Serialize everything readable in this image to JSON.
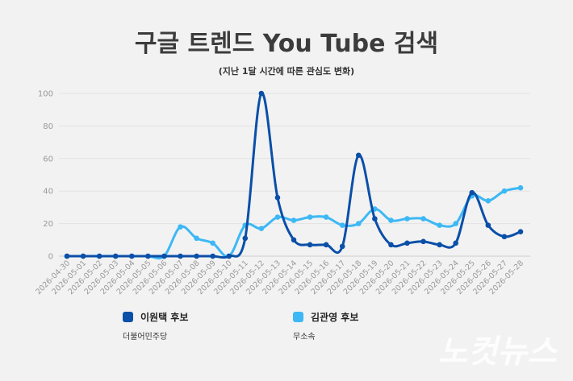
{
  "chart_data": {
    "type": "line",
    "title": "구글 트렌드 You Tube 검색",
    "subtitle": "(지난 1달 시간에 따른 관심도 변화)",
    "xlabel": "",
    "ylabel": "",
    "ylim": [
      0,
      100
    ],
    "yticks": [
      0,
      20,
      40,
      60,
      80,
      100
    ],
    "grid": true,
    "legend_position": "bottom",
    "x": [
      "2026-04-30",
      "2026-05-01",
      "2026-05-02",
      "2026-05-03",
      "2026-05-04",
      "2026-05-05",
      "2026-05-06",
      "2026-05-07",
      "2026-05-08",
      "2026-05-09",
      "2026-05-10",
      "2026-05-11",
      "2026-05-12",
      "2026-05-13",
      "2026-05-14",
      "2026-05-15",
      "2026-05-16",
      "2026-05-17",
      "2026-05-18",
      "2026-05-19",
      "2026-05-20",
      "2026-05-21",
      "2026-05-22",
      "2026-05-23",
      "2026-05-24",
      "2026-05-25",
      "2026-05-26",
      "2026-05-27",
      "2026-05-28"
    ],
    "series": [
      {
        "name": "이원택 후보",
        "party": "더불어민주당",
        "color": "#0a4fa8",
        "values": [
          0,
          0,
          0,
          0,
          0,
          0,
          0,
          0,
          0,
          0,
          0,
          11,
          100,
          36,
          10,
          7,
          7,
          6,
          62,
          23,
          7,
          8,
          9,
          7,
          8,
          39,
          19,
          12,
          15
        ]
      },
      {
        "name": "김관영 후보",
        "party": "무소속",
        "color": "#3db8f5",
        "values": [
          0,
          0,
          0,
          0,
          0,
          0,
          0,
          18,
          11,
          8,
          0,
          19,
          17,
          24,
          22,
          24,
          24,
          19,
          20,
          29,
          22,
          23,
          23,
          19,
          20,
          37,
          34,
          40,
          42
        ]
      }
    ]
  },
  "watermark": "노컷뉴스"
}
